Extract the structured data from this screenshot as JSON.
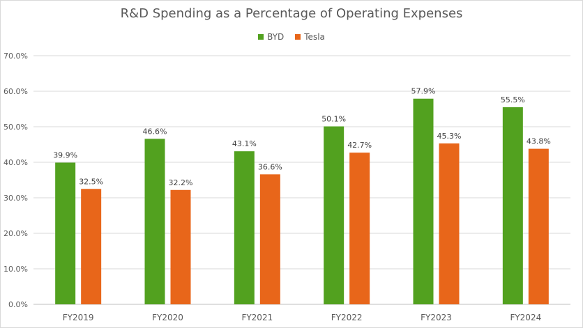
{
  "chart_data": {
    "type": "bar",
    "title": "R&D Spending as a Percentage of Operating Expenses",
    "categories": [
      "FY2019",
      "FY2020",
      "FY2021",
      "FY2022",
      "FY2023",
      "FY2024"
    ],
    "series": [
      {
        "name": "BYD",
        "color": "#52a11f",
        "values": [
          39.9,
          46.6,
          43.1,
          50.1,
          57.9,
          55.5
        ],
        "labels": [
          "39.9%",
          "46.6%",
          "43.1%",
          "50.1%",
          "57.9%",
          "55.5%"
        ]
      },
      {
        "name": "Tesla",
        "color": "#e8661a",
        "values": [
          32.5,
          32.2,
          36.6,
          42.7,
          45.3,
          43.8
        ],
        "labels": [
          "32.5%",
          "32.2%",
          "36.6%",
          "42.7%",
          "45.3%",
          "43.8%"
        ]
      }
    ],
    "y_ticks": [
      "0.0%",
      "10.0%",
      "20.0%",
      "30.0%",
      "40.0%",
      "50.0%",
      "60.0%",
      "70.0%"
    ],
    "ylim": [
      0,
      70
    ],
    "grid": true,
    "legend_position": "top-center"
  }
}
